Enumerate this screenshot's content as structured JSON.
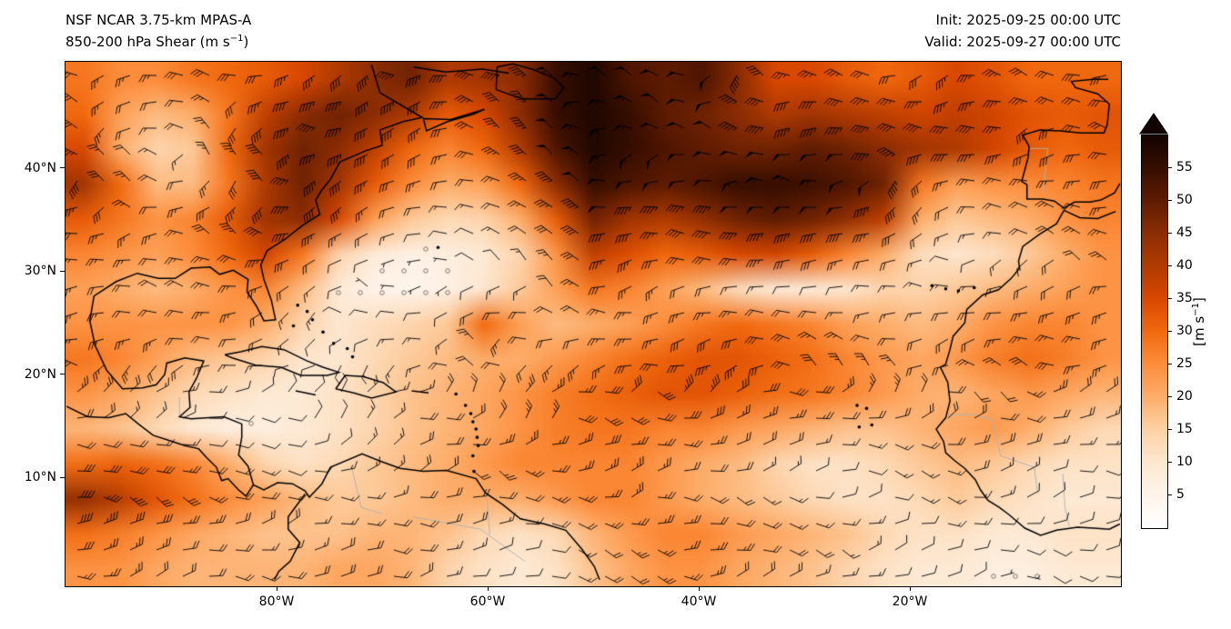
{
  "header": {
    "title_line1": "NSF NCAR 3.75-km MPAS-A",
    "title_line2_pre": "850-200 hPa Shear (m s",
    "title_line2_sup": "−1",
    "title_line2_post": ")",
    "init_label": "Init: 2025-09-25 00:00 UTC",
    "valid_label": "Valid: 2025-09-27 00:00 UTC"
  },
  "axes": {
    "x_ticks": [
      {
        "label": "80°W",
        "lon": -80
      },
      {
        "label": "60°W",
        "lon": -60
      },
      {
        "label": "40°W",
        "lon": -40
      },
      {
        "label": "20°W",
        "lon": -20
      }
    ],
    "y_ticks": [
      {
        "label": "40°N",
        "lat": 40
      },
      {
        "label": "30°N",
        "lat": 30
      },
      {
        "label": "20°N",
        "lat": 20
      },
      {
        "label": "10°N",
        "lat": 10
      }
    ]
  },
  "colorbar": {
    "ticks": [
      5,
      10,
      15,
      20,
      25,
      30,
      35,
      40,
      45,
      50,
      55
    ],
    "label_pre": "[m s",
    "label_sup": "−1",
    "label_post": "]",
    "vmin": 0,
    "vmax": 60,
    "extend": "max",
    "stops": [
      {
        "v": 0,
        "color": "#ffffff"
      },
      {
        "v": 5,
        "color": "#fff4ea"
      },
      {
        "v": 10,
        "color": "#fde7d0"
      },
      {
        "v": 15,
        "color": "#fdd1a5"
      },
      {
        "v": 20,
        "color": "#fdae6b"
      },
      {
        "v": 25,
        "color": "#fd8d3c"
      },
      {
        "v": 30,
        "color": "#f1690e"
      },
      {
        "v": 35,
        "color": "#d94801"
      },
      {
        "v": 40,
        "color": "#b03b02"
      },
      {
        "v": 45,
        "color": "#8c2d04"
      },
      {
        "v": 50,
        "color": "#5f1c02"
      },
      {
        "v": 55,
        "color": "#360e00"
      },
      {
        "v": 60,
        "color": "#120400"
      }
    ]
  },
  "chart_data": {
    "type": "heatmap",
    "title": "850-200 hPa Shear (m s-1)",
    "model": "NSF NCAR 3.75-km MPAS-A",
    "init": "2025-09-25 00:00 UTC",
    "valid": "2025-09-27 00:00 UTC",
    "units": "m s-1",
    "lon_range": [
      -100,
      0
    ],
    "lat_range": [
      0,
      50.3
    ],
    "legend_position": "right-colorbar",
    "overlays": [
      "wind-barbs",
      "coastlines",
      "low-shear-stipple-circles",
      "country-borders"
    ],
    "grid_lons": [
      -99,
      -95.5,
      -92,
      -88.5,
      -85,
      -81.5,
      -78,
      -74.5,
      -71,
      -67.5,
      -64,
      -60.5,
      -57,
      -53.5,
      -50,
      -46.5,
      -43,
      -39.5,
      -36,
      -32.5,
      -29,
      -25.5,
      -22,
      -18.5,
      -15,
      -11.5,
      -8,
      -4.5,
      -1
    ],
    "grid_lats": [
      49,
      45.5,
      42,
      38.5,
      35,
      31.5,
      28,
      24.5,
      21,
      17.5,
      14,
      10.5,
      7,
      3.5,
      0
    ],
    "shear_values": [
      [
        28,
        25,
        25,
        28,
        30,
        32,
        35,
        40,
        45,
        48,
        40,
        42,
        45,
        55,
        58,
        52,
        50,
        52,
        45,
        35,
        35,
        32,
        30,
        32,
        35,
        33,
        30,
        30,
        30
      ],
      [
        30,
        22,
        18,
        20,
        28,
        38,
        45,
        48,
        45,
        40,
        32,
        35,
        45,
        55,
        58,
        55,
        50,
        48,
        45,
        40,
        42,
        40,
        38,
        36,
        38,
        36,
        33,
        32,
        33
      ],
      [
        35,
        20,
        14,
        16,
        30,
        42,
        48,
        45,
        38,
        30,
        26,
        30,
        40,
        52,
        58,
        55,
        52,
        50,
        48,
        48,
        50,
        48,
        45,
        42,
        40,
        36,
        32,
        30,
        32
      ],
      [
        42,
        30,
        18,
        18,
        28,
        40,
        48,
        42,
        32,
        25,
        20,
        22,
        30,
        45,
        55,
        52,
        50,
        52,
        55,
        55,
        54,
        52,
        48,
        28,
        22,
        24,
        25,
        26,
        28
      ],
      [
        32,
        28,
        24,
        26,
        32,
        42,
        45,
        35,
        22,
        16,
        13,
        14,
        20,
        32,
        48,
        42,
        40,
        44,
        48,
        50,
        48,
        44,
        38,
        20,
        16,
        18,
        20,
        24,
        26
      ],
      [
        26,
        24,
        22,
        25,
        30,
        36,
        28,
        14,
        8,
        6,
        7,
        9,
        14,
        24,
        38,
        34,
        30,
        32,
        35,
        36,
        32,
        26,
        20,
        12,
        10,
        12,
        16,
        20,
        24
      ],
      [
        22,
        20,
        18,
        20,
        24,
        26,
        18,
        8,
        5,
        4,
        6,
        10,
        16,
        22,
        28,
        26,
        22,
        18,
        12,
        8,
        8,
        10,
        14,
        14,
        16,
        18,
        20,
        22,
        24
      ],
      [
        24,
        24,
        24,
        24,
        24,
        20,
        14,
        10,
        12,
        14,
        16,
        30,
        22,
        18,
        20,
        22,
        25,
        28,
        30,
        28,
        26,
        22,
        20,
        18,
        20,
        24,
        26,
        26,
        24
      ],
      [
        28,
        26,
        22,
        18,
        16,
        14,
        10,
        10,
        13,
        16,
        18,
        20,
        20,
        23,
        26,
        29,
        31,
        33,
        33,
        31,
        29,
        26,
        23,
        21,
        23,
        27,
        29,
        27,
        24
      ],
      [
        24,
        21,
        17,
        13,
        11,
        9,
        9,
        11,
        14,
        17,
        19,
        21,
        24,
        27,
        29,
        31,
        33,
        33,
        31,
        29,
        28,
        26,
        23,
        20,
        19,
        21,
        23,
        21,
        19
      ],
      [
        19,
        17,
        13,
        9,
        7,
        7,
        9,
        11,
        14,
        17,
        19,
        21,
        24,
        27,
        28,
        28,
        26,
        26,
        23,
        21,
        19,
        17,
        17,
        19,
        21,
        23,
        20,
        16,
        13
      ],
      [
        29,
        31,
        29,
        26,
        20,
        14,
        11,
        13,
        16,
        18,
        20,
        23,
        26,
        26,
        26,
        26,
        23,
        20,
        18,
        14,
        11,
        11,
        13,
        16,
        18,
        16,
        13,
        11,
        11
      ],
      [
        44,
        39,
        33,
        29,
        25,
        22,
        18,
        16,
        16,
        18,
        20,
        20,
        20,
        23,
        26,
        26,
        23,
        20,
        18,
        16,
        13,
        11,
        11,
        13,
        16,
        13,
        11,
        9,
        9
      ],
      [
        29,
        27,
        24,
        21,
        19,
        17,
        17,
        17,
        19,
        19,
        17,
        13,
        11,
        13,
        19,
        23,
        26,
        26,
        23,
        21,
        19,
        17,
        13,
        11,
        11,
        9,
        9,
        11,
        11
      ],
      [
        24,
        24,
        21,
        19,
        19,
        19,
        19,
        21,
        21,
        19,
        14,
        11,
        9,
        11,
        17,
        21,
        24,
        24,
        21,
        19,
        17,
        14,
        11,
        9,
        9,
        7,
        7,
        9,
        9
      ]
    ]
  }
}
